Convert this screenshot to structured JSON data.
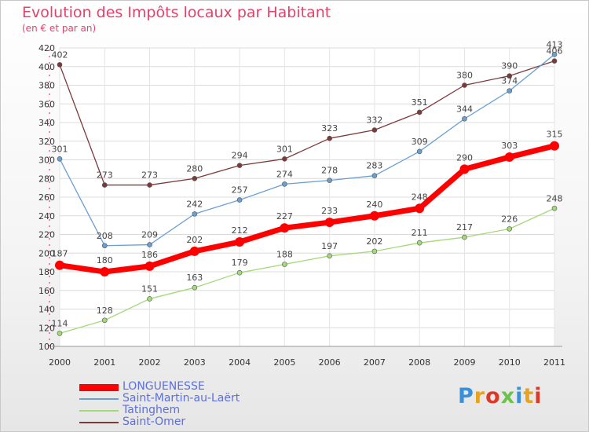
{
  "chart_data": {
    "type": "line",
    "title": "Evolution des Impôts locaux par Habitant",
    "subtitle": "(en € et par an)",
    "xlabel": "",
    "ylabel": "",
    "categories": [
      "2000",
      "2001",
      "2002",
      "2003",
      "2004",
      "2005",
      "2006",
      "2007",
      "2008",
      "2009",
      "2010",
      "2011"
    ],
    "yticks": [
      "100",
      "120",
      "140",
      "160",
      "180",
      "200",
      "220",
      "240",
      "260",
      "280",
      "300",
      "320",
      "340",
      "360",
      "380",
      "400",
      "420"
    ],
    "ylim": [
      100,
      420
    ],
    "grid": true,
    "legend_position": "bottom-left",
    "series": [
      {
        "name": "LONGUENESSE",
        "color": "#ff0000",
        "values": [
          187,
          180,
          186,
          202,
          212,
          227,
          233,
          240,
          248,
          290,
          303,
          315
        ]
      },
      {
        "name": "Saint-Martin-au-Laërt",
        "color": "#6a9fd0",
        "values": [
          301,
          208,
          209,
          242,
          257,
          274,
          278,
          283,
          309,
          344,
          374,
          413
        ]
      },
      {
        "name": "Tatinghem",
        "color": "#a4d97a",
        "values": [
          114,
          128,
          151,
          163,
          179,
          188,
          197,
          202,
          211,
          217,
          226,
          248
        ]
      },
      {
        "name": "Saint-Omer",
        "color": "#7d3a3a",
        "values": [
          402,
          273,
          273,
          280,
          294,
          301,
          323,
          332,
          351,
          380,
          390,
          406
        ]
      }
    ]
  },
  "logo": {
    "text": "Proxiti",
    "letter_colors": [
      "#3a8fd6",
      "#e8a21c",
      "#d93a2a",
      "#6cc24a",
      "#3a8fd6",
      "#e8a21c",
      "#d93a2a"
    ]
  }
}
